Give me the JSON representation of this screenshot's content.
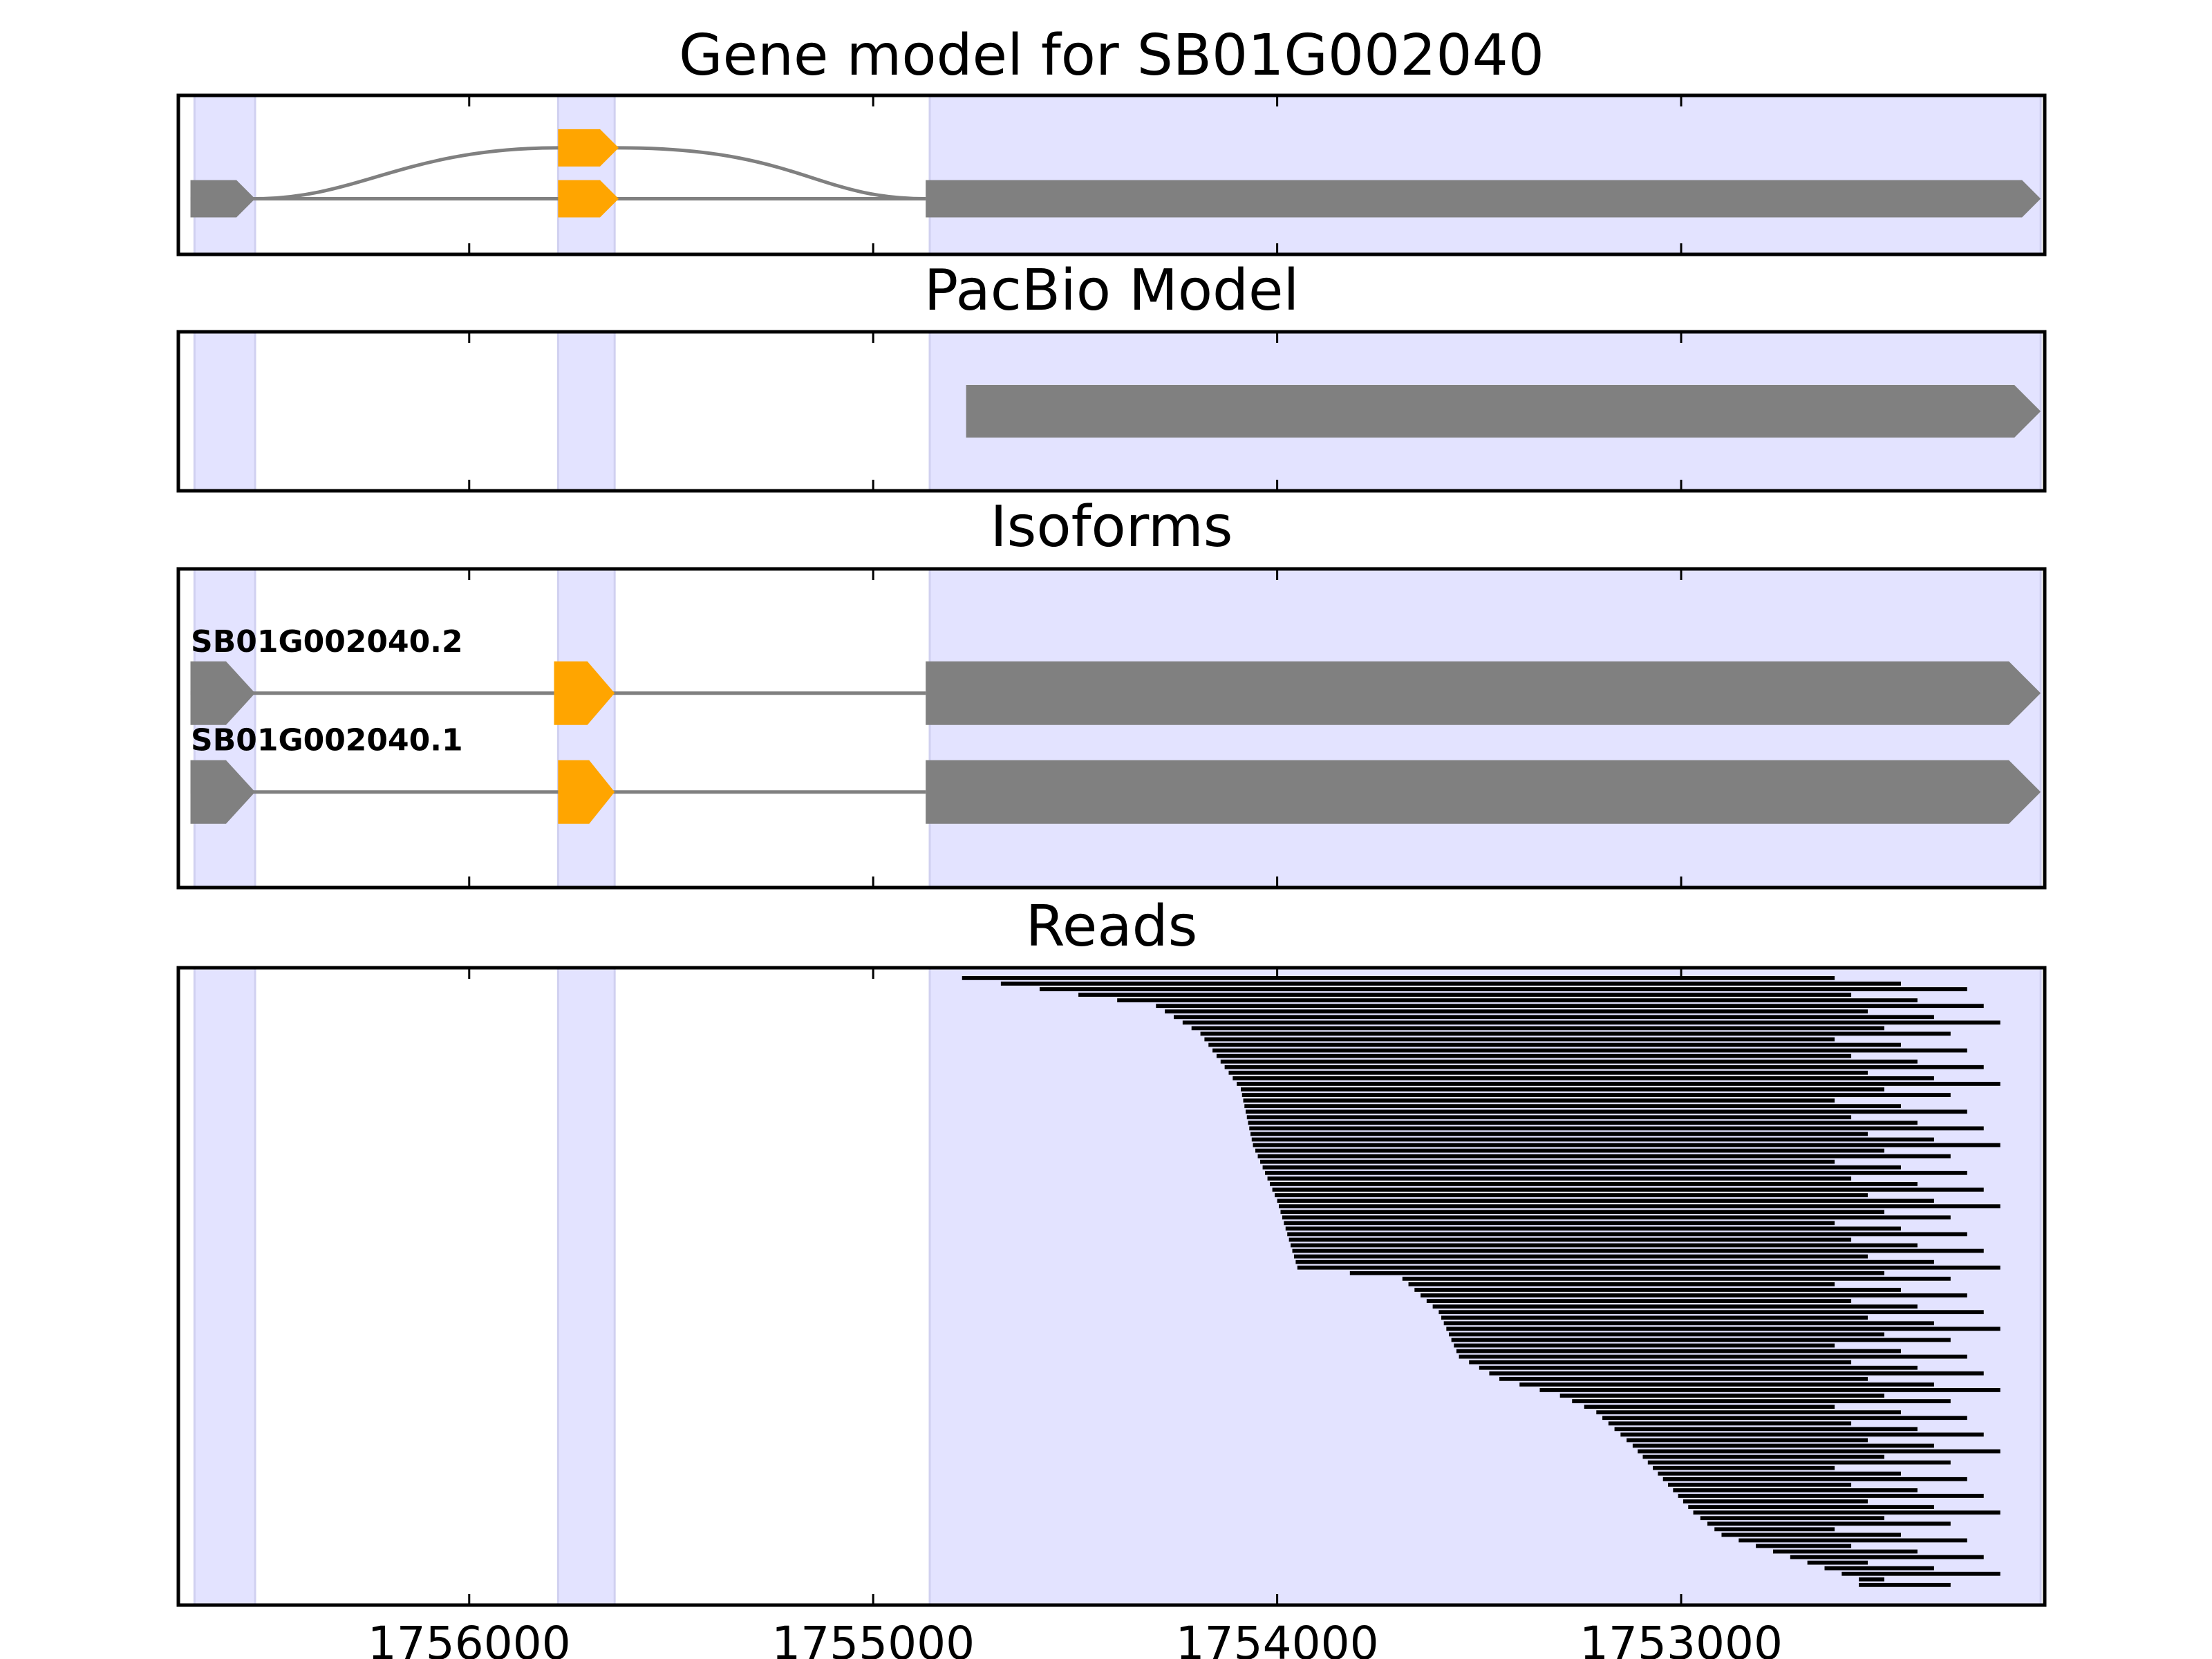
{
  "chart_data": {
    "type": "gene-track",
    "x_axis": {
      "reversed": true,
      "xlim": [
        1756720,
        1752100
      ],
      "ticks": [
        1756000,
        1755000,
        1754000,
        1753000
      ],
      "tick_labels": [
        "1756000",
        "1755000",
        "1754000",
        "1753000"
      ]
    },
    "exon_regions": [
      [
        1756680,
        1756530
      ],
      [
        1755780,
        1755640
      ],
      [
        1754860,
        1752110
      ]
    ],
    "colors": {
      "highlight": "#e3e3ff",
      "exon": "#808080",
      "alt_exon": "#ffa500",
      "intron": "#808080",
      "read": "#000000"
    },
    "panels": [
      {
        "id": "gene-model",
        "title": "Gene model for SB01G002040",
        "tracks": [
          {
            "y": 0.33,
            "exons": [
              [
                1755780,
                1755630
              ]
            ],
            "exon_color": "alt_exon",
            "intron": "curve-up"
          },
          {
            "y": 0.65,
            "exons": [
              [
                1756690,
                1756530
              ],
              [
                1755780,
                1755630
              ],
              [
                1754870,
                1752110
              ]
            ],
            "exon_colors": [
              "exon",
              "alt_exon",
              "exon"
            ],
            "intron": "line"
          }
        ]
      },
      {
        "id": "pacbio-model",
        "title": "PacBio Model",
        "tracks": [
          {
            "y": 0.5,
            "exons": [
              [
                1754770,
                1752110
              ]
            ],
            "exon_colors": [
              "exon"
            ],
            "intron": "none"
          }
        ]
      },
      {
        "id": "isoforms",
        "title": "Isoforms",
        "tracks": [
          {
            "y": 0.39,
            "label": "SB01G002040.2",
            "exons": [
              [
                1756690,
                1756530
              ],
              [
                1755790,
                1755640
              ],
              [
                1754870,
                1752110
              ]
            ],
            "exon_colors": [
              "exon",
              "alt_exon",
              "exon"
            ],
            "intron": "line"
          },
          {
            "y": 0.7,
            "label": "SB01G002040.1",
            "exons": [
              [
                1756690,
                1756530
              ],
              [
                1755780,
                1755640
              ],
              [
                1754870,
                1752110
              ]
            ],
            "exon_colors": [
              "exon",
              "alt_exon",
              "exon"
            ],
            "intron": "line"
          }
        ]
      },
      {
        "id": "reads",
        "title": "Reads",
        "read_count": 110,
        "start_curve": [
          [
            0,
            1754780
          ],
          [
            5,
            1754300
          ],
          [
            10,
            1754190
          ],
          [
            20,
            1754090
          ],
          [
            30,
            1754060
          ],
          [
            40,
            1754000
          ],
          [
            52,
            1753950
          ],
          [
            54,
            1753690
          ],
          [
            60,
            1753600
          ],
          [
            68,
            1753550
          ],
          [
            72,
            1753450
          ],
          [
            75,
            1753300
          ],
          [
            78,
            1753210
          ],
          [
            84,
            1753120
          ],
          [
            96,
            1752970
          ],
          [
            100,
            1752900
          ],
          [
            108,
            1752560
          ],
          [
            110,
            1752560
          ]
        ],
        "end_range": [
          1752620,
          1752210
        ]
      }
    ]
  }
}
